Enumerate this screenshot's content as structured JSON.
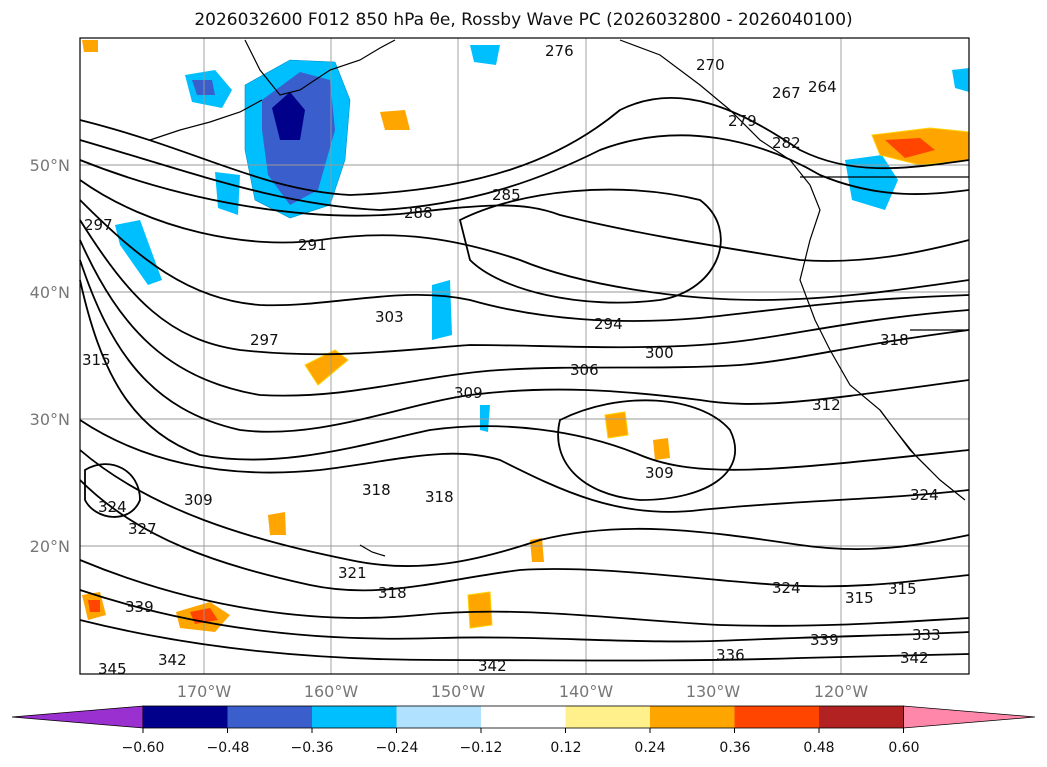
{
  "title": "2026032600 F012 850 hPa θe, Rossby Wave PC (2026032800 - 2026040100)",
  "latitude_labels": [
    "50°N",
    "40°N",
    "30°N",
    "20°N"
  ],
  "longitude_labels": [
    "170°W",
    "160°W",
    "150°W",
    "140°W",
    "130°W",
    "120°W"
  ],
  "colorbar": {
    "tick_labels": [
      "−0.60",
      "−0.48",
      "−0.36",
      "−0.24",
      "−0.12",
      "0.12",
      "0.24",
      "0.36",
      "0.48",
      "0.60"
    ],
    "colors": [
      "#9b30d0",
      "#00008b",
      "#3a5fcd",
      "#00bfff",
      "#b0e2ff",
      "#ffffff",
      "#fff08c",
      "#ffa500",
      "#ff4500",
      "#b22222",
      "#ff88aa"
    ]
  },
  "contour_labels": [
    "276",
    "270",
    "264",
    "267",
    "279",
    "282",
    "285",
    "288",
    "291",
    "297",
    "294",
    "300",
    "303",
    "306",
    "309",
    "312",
    "315",
    "318",
    "321",
    "324",
    "327",
    "333",
    "336",
    "339",
    "342",
    "345"
  ],
  "colors": {
    "positive": "#ffa500",
    "strong_positive": "#ff4500",
    "negative": "#00bfff",
    "strong_negative": "#3a5fcd",
    "contour": "#000000",
    "grid": "#999999"
  }
}
